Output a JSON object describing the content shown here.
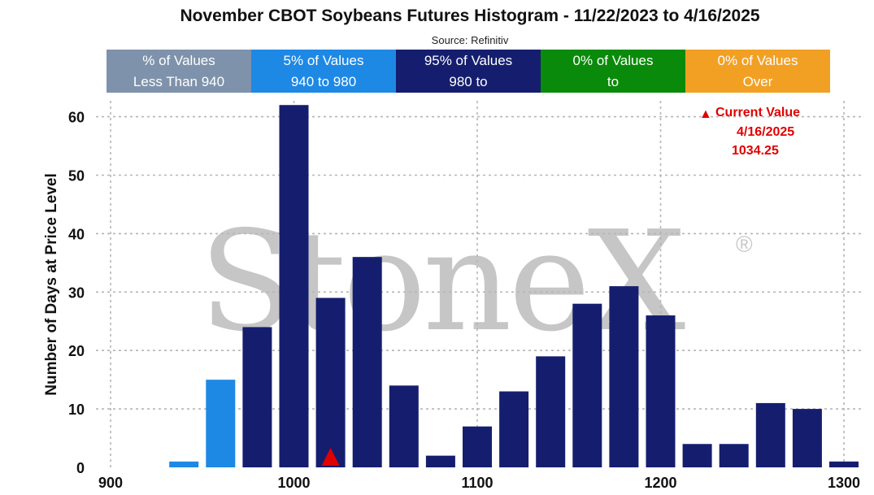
{
  "title": "November CBOT Soybeans Futures Histogram - 11/22/2023 to 4/16/2025",
  "source": "Source: Refinitiv",
  "legend": [
    {
      "line1": "% of Values",
      "line2": "Less Than 940",
      "color": "#7f92ab"
    },
    {
      "line1": "5% of Values",
      "line2": "940 to 980",
      "color": "#1e88e5"
    },
    {
      "line1": "95% of Values",
      "line2": "980 to",
      "color": "#151e6e"
    },
    {
      "line1": "0% of Values",
      "line2": "to",
      "color": "#0a8a0a"
    },
    {
      "line1": "0% of Values",
      "line2": "Over",
      "color": "#f2a024"
    }
  ],
  "watermark": {
    "text": "StoneX",
    "reg": "®"
  },
  "current_value": {
    "title": "Current Value",
    "date": "4/16/2025",
    "value": "1034.25",
    "icon": "red-triangle-icon",
    "marker_x": 1020
  },
  "chart_data": {
    "type": "bar",
    "title": "November CBOT Soybeans Futures Histogram - 11/22/2023 to 4/16/2025",
    "xlabel": "",
    "ylabel": "Number of Days at Price Level",
    "x": [
      940,
      960,
      980,
      1000,
      1020,
      1040,
      1060,
      1080,
      1100,
      1120,
      1140,
      1160,
      1180,
      1200,
      1220,
      1240,
      1260,
      1280,
      1300
    ],
    "values": [
      1,
      15,
      24,
      62,
      29,
      36,
      14,
      2,
      7,
      13,
      19,
      28,
      31,
      26,
      4,
      4,
      11,
      10,
      1
    ],
    "bar_colors": [
      "#1e88e5",
      "#1e88e5",
      "#151e6e",
      "#151e6e",
      "#151e6e",
      "#151e6e",
      "#151e6e",
      "#151e6e",
      "#151e6e",
      "#151e6e",
      "#151e6e",
      "#151e6e",
      "#151e6e",
      "#151e6e",
      "#151e6e",
      "#151e6e",
      "#151e6e",
      "#151e6e",
      "#151e6e"
    ],
    "xlim": [
      900,
      1300
    ],
    "ylim": [
      0,
      62
    ],
    "xticks": [
      900,
      1000,
      1100,
      1200,
      1300
    ],
    "yticks": [
      0,
      10,
      20,
      30,
      40,
      50,
      60
    ],
    "grid": true
  }
}
